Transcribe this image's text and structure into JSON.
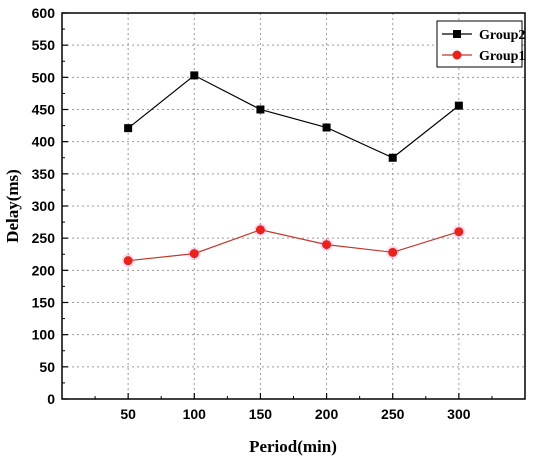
{
  "chart_data": {
    "type": "line",
    "xlabel": "Period(min)",
    "ylabel": "Delay(ms)",
    "x": [
      50,
      100,
      150,
      200,
      250,
      300
    ],
    "xlim": [
      0,
      350
    ],
    "ylim": [
      0,
      600
    ],
    "xticks": [
      "50",
      "100",
      "150",
      "200",
      "250",
      "300"
    ],
    "yticks": [
      "0",
      "50",
      "100",
      "150",
      "200",
      "250",
      "300",
      "350",
      "400",
      "450",
      "500",
      "550",
      "600"
    ],
    "grid": true,
    "legend_position": "top-right",
    "series": [
      {
        "name": "Group2",
        "values": [
          421,
          503,
          450,
          422,
          375,
          456
        ],
        "color": "#000000",
        "marker": "square"
      },
      {
        "name": "Group1",
        "values": [
          215,
          226,
          263,
          240,
          228,
          260
        ],
        "color": "#e8231a",
        "line_color": "#c0392b",
        "marker": "circle"
      }
    ]
  }
}
